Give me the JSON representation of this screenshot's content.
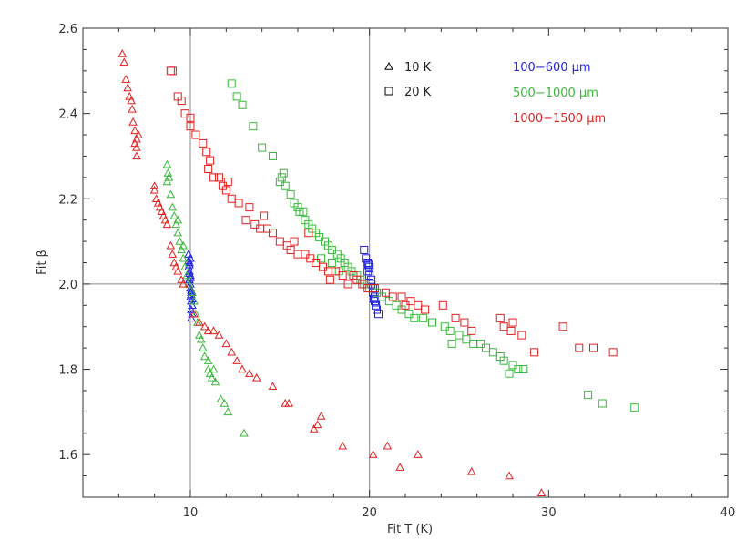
{
  "chart_data": {
    "type": "scatter",
    "xlabel": "Fit T (K)",
    "ylabel": "Fit β",
    "xlim": [
      4,
      40
    ],
    "ylim": [
      1.5,
      2.6
    ],
    "xticks": [
      10,
      20,
      30,
      40
    ],
    "yticks": [
      1.6,
      1.8,
      2.0,
      2.2,
      2.4,
      2.6
    ],
    "xtick_labels": [
      "10",
      "20",
      "30",
      "40"
    ],
    "ytick_labels": [
      "1.6",
      "1.8",
      "2.0",
      "2.2",
      "2.4",
      "2.6"
    ],
    "reference_lines": {
      "x": [
        10,
        20
      ],
      "y": [
        2.0
      ]
    },
    "legend": {
      "markers": [
        {
          "marker": "triangle",
          "label": "10 K"
        },
        {
          "marker": "square",
          "label": "20 K"
        }
      ],
      "bands": [
        {
          "label": "100−600 μm",
          "color": "#1f1fe6"
        },
        {
          "label": "500−1000 μm",
          "color": "#39b83a"
        },
        {
          "label": "1000−1500 μm",
          "color": "#e21f1f"
        }
      ]
    },
    "series": [
      {
        "marker": "triangle",
        "temp": "10 K",
        "band": "100−600 μm",
        "color": "#1f1fe6",
        "points": [
          [
            9.9,
            2.07
          ],
          [
            9.95,
            2.05
          ],
          [
            9.9,
            2.04
          ],
          [
            9.95,
            2.03
          ],
          [
            10.0,
            2.02
          ],
          [
            9.95,
            2.01
          ],
          [
            10.0,
            2.0
          ],
          [
            10.0,
            1.99
          ],
          [
            10.05,
            1.98
          ],
          [
            10.0,
            1.97
          ],
          [
            10.05,
            1.96
          ],
          [
            10.1,
            1.95
          ],
          [
            10.05,
            1.94
          ],
          [
            10.0,
            2.06
          ],
          [
            9.9,
            2.055
          ],
          [
            9.95,
            2.045
          ],
          [
            9.95,
            2.025
          ],
          [
            10.0,
            2.015
          ],
          [
            10.05,
            1.985
          ],
          [
            10.05,
            1.975
          ],
          [
            10.1,
            1.965
          ],
          [
            10.1,
            1.93
          ],
          [
            10.05,
            1.92
          ]
        ]
      },
      {
        "marker": "triangle",
        "temp": "10 K",
        "band": "500−1000 μm",
        "color": "#39b83a",
        "points": [
          [
            8.7,
            2.28
          ],
          [
            8.75,
            2.26
          ],
          [
            8.8,
            2.25
          ],
          [
            8.7,
            2.24
          ],
          [
            8.9,
            2.21
          ],
          [
            9.0,
            2.18
          ],
          [
            9.1,
            2.16
          ],
          [
            9.2,
            2.14
          ],
          [
            9.3,
            2.12
          ],
          [
            9.4,
            2.1
          ],
          [
            9.5,
            2.08
          ],
          [
            9.6,
            2.06
          ],
          [
            9.7,
            2.04
          ],
          [
            9.8,
            2.02
          ],
          [
            9.9,
            2.0
          ],
          [
            10.1,
            1.98
          ],
          [
            10.2,
            1.96
          ],
          [
            10.3,
            1.93
          ],
          [
            10.4,
            1.91
          ],
          [
            10.5,
            1.88
          ],
          [
            10.7,
            1.85
          ],
          [
            10.8,
            1.83
          ],
          [
            11.0,
            1.8
          ],
          [
            11.1,
            1.79
          ],
          [
            11.2,
            1.78
          ],
          [
            11.4,
            1.77
          ],
          [
            11.7,
            1.73
          ],
          [
            11.9,
            1.72
          ],
          [
            12.1,
            1.7
          ],
          [
            13.0,
            1.65
          ],
          [
            10.6,
            1.87
          ],
          [
            11.0,
            1.82
          ],
          [
            11.3,
            1.8
          ],
          [
            9.3,
            2.15
          ],
          [
            9.6,
            2.09
          ]
        ]
      },
      {
        "marker": "triangle",
        "temp": "10 K",
        "band": "1000−1500 μm",
        "color": "#e21f1f",
        "points": [
          [
            6.2,
            2.54
          ],
          [
            6.3,
            2.52
          ],
          [
            6.5,
            2.46
          ],
          [
            6.6,
            2.44
          ],
          [
            6.7,
            2.43
          ],
          [
            6.75,
            2.41
          ],
          [
            6.8,
            2.38
          ],
          [
            6.9,
            2.36
          ],
          [
            7.0,
            2.34
          ],
          [
            6.9,
            2.33
          ],
          [
            7.0,
            2.32
          ],
          [
            7.0,
            2.3
          ],
          [
            8.0,
            2.23
          ],
          [
            8.0,
            2.22
          ],
          [
            8.2,
            2.19
          ],
          [
            8.3,
            2.18
          ],
          [
            8.4,
            2.17
          ],
          [
            8.5,
            2.16
          ],
          [
            8.6,
            2.15
          ],
          [
            8.7,
            2.14
          ],
          [
            8.9,
            2.09
          ],
          [
            9.1,
            2.05
          ],
          [
            9.2,
            2.04
          ],
          [
            9.3,
            2.03
          ],
          [
            9.5,
            2.01
          ],
          [
            9.6,
            2.0
          ],
          [
            10.2,
            1.93
          ],
          [
            10.5,
            1.91
          ],
          [
            10.8,
            1.9
          ],
          [
            11.0,
            1.89
          ],
          [
            11.3,
            1.89
          ],
          [
            11.6,
            1.88
          ],
          [
            12.0,
            1.86
          ],
          [
            12.3,
            1.84
          ],
          [
            12.6,
            1.82
          ],
          [
            12.9,
            1.8
          ],
          [
            13.3,
            1.79
          ],
          [
            13.7,
            1.78
          ],
          [
            14.6,
            1.76
          ],
          [
            15.3,
            1.72
          ],
          [
            15.5,
            1.72
          ],
          [
            16.9,
            1.66
          ],
          [
            17.1,
            1.67
          ],
          [
            17.3,
            1.69
          ],
          [
            18.5,
            1.62
          ],
          [
            20.2,
            1.6
          ],
          [
            21.0,
            1.62
          ],
          [
            21.7,
            1.57
          ],
          [
            22.7,
            1.6
          ],
          [
            25.7,
            1.56
          ],
          [
            27.8,
            1.55
          ],
          [
            29.6,
            1.51
          ],
          [
            6.4,
            2.48
          ],
          [
            7.1,
            2.35
          ],
          [
            8.1,
            2.2
          ],
          [
            9.0,
            2.07
          ]
        ]
      },
      {
        "marker": "square",
        "temp": "20 K",
        "band": "100−600 μm",
        "color": "#1f1fe6",
        "points": [
          [
            19.7,
            2.08
          ],
          [
            19.8,
            2.06
          ],
          [
            19.9,
            2.05
          ],
          [
            20.0,
            2.04
          ],
          [
            19.9,
            2.03
          ],
          [
            20.0,
            2.02
          ],
          [
            20.1,
            2.0
          ],
          [
            20.2,
            1.99
          ],
          [
            20.2,
            1.98
          ],
          [
            20.3,
            1.97
          ],
          [
            20.3,
            1.96
          ],
          [
            20.4,
            1.94
          ],
          [
            20.5,
            1.93
          ],
          [
            20.1,
            2.01
          ],
          [
            19.95,
            2.045
          ],
          [
            20.25,
            1.965
          ],
          [
            20.35,
            1.95
          ]
        ]
      },
      {
        "marker": "square",
        "temp": "20 K",
        "band": "500−1000 μm",
        "color": "#39b83a",
        "points": [
          [
            12.3,
            2.47
          ],
          [
            12.6,
            2.44
          ],
          [
            12.9,
            2.42
          ],
          [
            13.5,
            2.37
          ],
          [
            14.0,
            2.32
          ],
          [
            14.6,
            2.3
          ],
          [
            15.2,
            2.26
          ],
          [
            15.1,
            2.25
          ],
          [
            15.3,
            2.23
          ],
          [
            15.6,
            2.21
          ],
          [
            15.8,
            2.19
          ],
          [
            16.0,
            2.18
          ],
          [
            16.3,
            2.17
          ],
          [
            16.4,
            2.15
          ],
          [
            16.6,
            2.14
          ],
          [
            16.8,
            2.13
          ],
          [
            17.0,
            2.12
          ],
          [
            17.2,
            2.11
          ],
          [
            17.5,
            2.1
          ],
          [
            17.7,
            2.09
          ],
          [
            17.9,
            2.08
          ],
          [
            18.2,
            2.07
          ],
          [
            18.4,
            2.06
          ],
          [
            18.6,
            2.05
          ],
          [
            18.8,
            2.04
          ],
          [
            19.0,
            2.03
          ],
          [
            19.3,
            2.02
          ],
          [
            19.5,
            2.01
          ],
          [
            19.7,
            2.0
          ],
          [
            20.0,
            1.99
          ],
          [
            20.4,
            1.98
          ],
          [
            20.7,
            1.97
          ],
          [
            21.1,
            1.96
          ],
          [
            21.5,
            1.95
          ],
          [
            21.8,
            1.94
          ],
          [
            22.2,
            1.93
          ],
          [
            22.5,
            1.92
          ],
          [
            23.0,
            1.92
          ],
          [
            23.5,
            1.91
          ],
          [
            24.2,
            1.9
          ],
          [
            24.5,
            1.89
          ],
          [
            25.0,
            1.88
          ],
          [
            25.4,
            1.87
          ],
          [
            25.8,
            1.86
          ],
          [
            26.2,
            1.86
          ],
          [
            26.5,
            1.85
          ],
          [
            26.9,
            1.84
          ],
          [
            27.3,
            1.83
          ],
          [
            27.5,
            1.82
          ],
          [
            28.0,
            1.81
          ],
          [
            28.3,
            1.8
          ],
          [
            28.6,
            1.8
          ],
          [
            27.8,
            1.79
          ],
          [
            32.2,
            1.74
          ],
          [
            33.0,
            1.72
          ],
          [
            34.8,
            1.71
          ],
          [
            17.3,
            2.06
          ],
          [
            17.9,
            2.05
          ],
          [
            18.3,
            2.03
          ],
          [
            16.1,
            2.17
          ],
          [
            15.0,
            2.24
          ],
          [
            24.6,
            1.86
          ]
        ]
      },
      {
        "marker": "square",
        "temp": "20 K",
        "band": "1000−1500 μm",
        "color": "#e21f1f",
        "points": [
          [
            8.9,
            2.5
          ],
          [
            9.0,
            2.5
          ],
          [
            9.3,
            2.44
          ],
          [
            9.5,
            2.43
          ],
          [
            9.7,
            2.4
          ],
          [
            10.0,
            2.39
          ],
          [
            10.0,
            2.37
          ],
          [
            10.3,
            2.35
          ],
          [
            10.7,
            2.33
          ],
          [
            10.9,
            2.31
          ],
          [
            11.1,
            2.29
          ],
          [
            11.0,
            2.27
          ],
          [
            11.3,
            2.25
          ],
          [
            11.6,
            2.25
          ],
          [
            11.8,
            2.23
          ],
          [
            12.0,
            2.22
          ],
          [
            12.3,
            2.2
          ],
          [
            12.7,
            2.19
          ],
          [
            13.3,
            2.18
          ],
          [
            13.6,
            2.14
          ],
          [
            13.9,
            2.13
          ],
          [
            14.3,
            2.13
          ],
          [
            14.6,
            2.12
          ],
          [
            15.0,
            2.1
          ],
          [
            15.4,
            2.09
          ],
          [
            15.6,
            2.08
          ],
          [
            16.0,
            2.07
          ],
          [
            16.4,
            2.07
          ],
          [
            16.7,
            2.06
          ],
          [
            17.0,
            2.05
          ],
          [
            17.4,
            2.04
          ],
          [
            17.7,
            2.03
          ],
          [
            18.1,
            2.03
          ],
          [
            18.5,
            2.02
          ],
          [
            19.1,
            2.02
          ],
          [
            19.3,
            2.01
          ],
          [
            19.6,
            2.0
          ],
          [
            19.9,
            1.99
          ],
          [
            20.3,
            1.99
          ],
          [
            20.9,
            1.98
          ],
          [
            21.3,
            1.97
          ],
          [
            21.8,
            1.97
          ],
          [
            22.3,
            1.96
          ],
          [
            22.7,
            1.95
          ],
          [
            23.1,
            1.94
          ],
          [
            24.1,
            1.95
          ],
          [
            24.8,
            1.92
          ],
          [
            25.3,
            1.91
          ],
          [
            25.7,
            1.89
          ],
          [
            27.3,
            1.92
          ],
          [
            27.5,
            1.9
          ],
          [
            27.9,
            1.89
          ],
          [
            28.5,
            1.88
          ],
          [
            29.2,
            1.84
          ],
          [
            30.8,
            1.9
          ],
          [
            31.7,
            1.85
          ],
          [
            32.5,
            1.85
          ],
          [
            33.6,
            1.84
          ],
          [
            12.1,
            2.24
          ],
          [
            13.1,
            2.15
          ],
          [
            14.1,
            2.16
          ],
          [
            15.8,
            2.1
          ],
          [
            16.6,
            2.12
          ],
          [
            17.8,
            2.01
          ],
          [
            18.8,
            2.0
          ],
          [
            22.0,
            1.95
          ],
          [
            28.0,
            1.91
          ]
        ]
      }
    ]
  }
}
